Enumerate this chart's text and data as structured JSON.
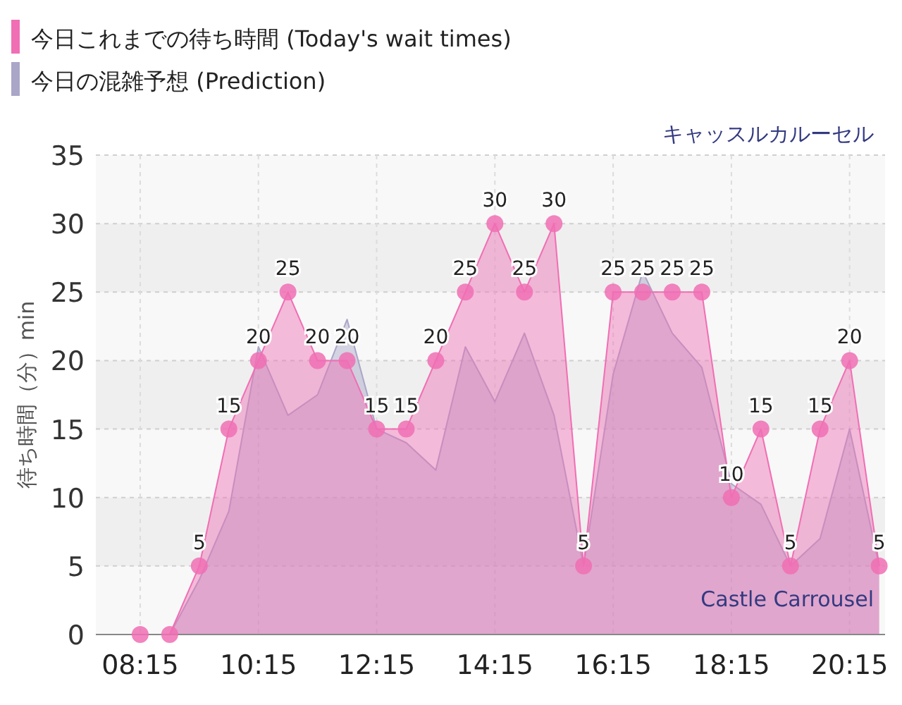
{
  "chart_data": {
    "type": "area",
    "ylabel": "待ち時間（分）min",
    "x": [
      8.25,
      8.75,
      9.25,
      9.75,
      10.25,
      10.75,
      11.25,
      11.75,
      12.25,
      12.75,
      13.25,
      13.75,
      14.25,
      14.75,
      15.25,
      15.75,
      16.25,
      16.75,
      17.25,
      17.75,
      18.25,
      18.75,
      19.25,
      19.75,
      20.25,
      20.75
    ],
    "series": [
      {
        "name": "今日の混雑予想 (Prediction)",
        "color": "#a9a6c8",
        "values": [
          0,
          0,
          4,
          9,
          21,
          16,
          17.5,
          23,
          15,
          14,
          12,
          21,
          17,
          22,
          16,
          5,
          19,
          26.5,
          22,
          19.5,
          11,
          9.5,
          5,
          7,
          15,
          5
        ]
      },
      {
        "name": "今日これまでの待ち時間 (Today's wait times)",
        "color": "#f06eb4",
        "marker": "circle",
        "values": [
          0,
          0,
          5,
          15,
          20,
          25,
          20,
          20,
          15,
          15,
          20,
          25,
          30,
          25,
          30,
          5,
          25,
          25,
          25,
          25,
          10,
          15,
          5,
          15,
          20,
          5
        ],
        "value_labels": [
          null,
          null,
          "5",
          "15",
          "20",
          "25",
          "20",
          "20",
          "15",
          "15",
          "20",
          "25",
          "30",
          "25",
          "30",
          "5",
          "25",
          "25",
          "25",
          "25",
          "10",
          "15",
          "5",
          "15",
          "20",
          "5"
        ]
      }
    ],
    "xlim": [
      7.5,
      20.85
    ],
    "xticks": [
      {
        "value": 8.25,
        "label": "08:15"
      },
      {
        "value": 10.25,
        "label": "10:15"
      },
      {
        "value": 12.25,
        "label": "12:15"
      },
      {
        "value": 14.25,
        "label": "14:15"
      },
      {
        "value": 16.25,
        "label": "16:15"
      },
      {
        "value": 18.25,
        "label": "18:15"
      },
      {
        "value": 20.25,
        "label": "20:15"
      }
    ],
    "ylim": [
      0,
      35
    ],
    "yticks": [
      0,
      5,
      10,
      15,
      20,
      25,
      30,
      35
    ],
    "grid": true,
    "legend": "top left",
    "annotations": [
      "キャッスルカルーセル",
      "Castle Carrousel"
    ]
  }
}
